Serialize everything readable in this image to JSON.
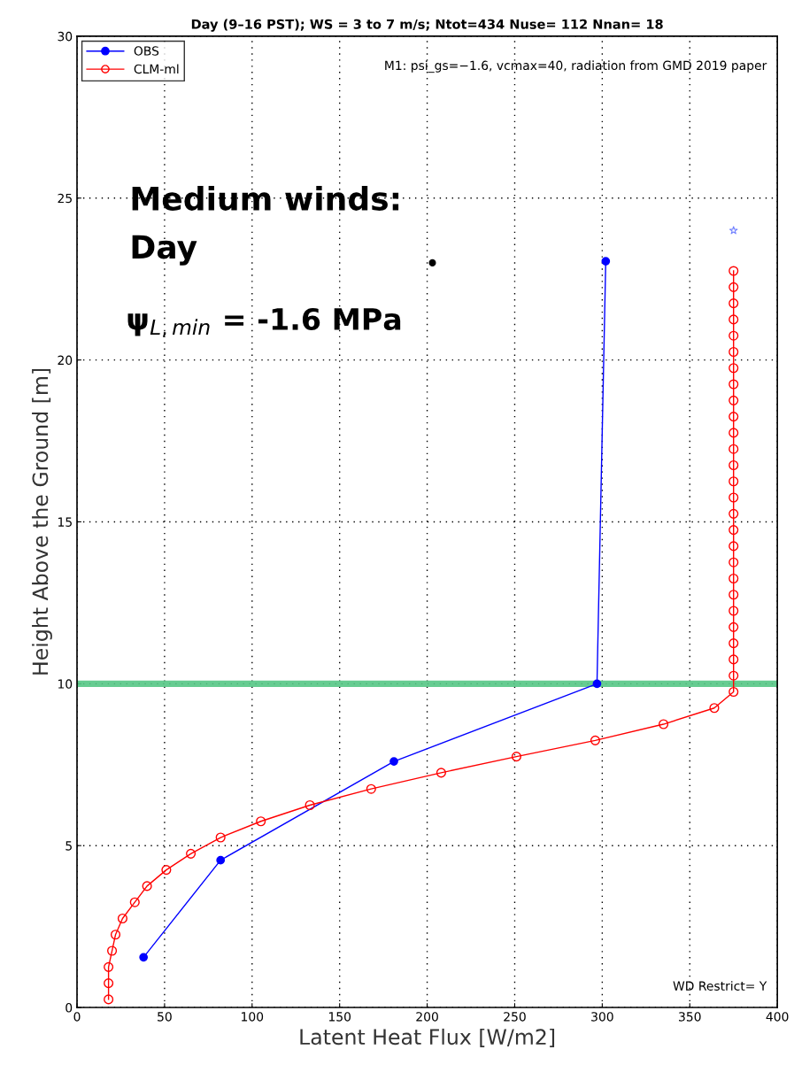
{
  "chart_data": {
    "type": "line",
    "title": "Day (9–16 PST); WS = 3 to 7 m/s; Ntot=434 Nuse= 112 Nnan= 18",
    "xlabel": "Latent Heat Flux [W/m2]",
    "ylabel": "Height Above the Ground [m]",
    "xlim": [
      0,
      400
    ],
    "xticks": [
      0,
      50,
      100,
      150,
      200,
      250,
      300,
      350,
      400
    ],
    "ylim": [
      0,
      30
    ],
    "yticks": [
      0,
      5,
      10,
      15,
      20,
      25,
      30
    ],
    "grid": true,
    "legend": "top left",
    "series": [
      {
        "name": "OBS",
        "color": "#0000ff",
        "marker": "circle",
        "x": [
          38,
          82,
          181,
          297,
          302
        ],
        "values": [
          1.55,
          4.55,
          7.6,
          10.0,
          23.05
        ]
      },
      {
        "name": "CLM-ml",
        "color": "#ff0000",
        "marker": "circle",
        "x": [
          18,
          18,
          18,
          20,
          22,
          26,
          33,
          40,
          51,
          65,
          82,
          105,
          133,
          168,
          208,
          251,
          296,
          335,
          364,
          375,
          375,
          375,
          375,
          375,
          375,
          375,
          375,
          375,
          375,
          375,
          375,
          375,
          375,
          375,
          375,
          375,
          375,
          375,
          375,
          375,
          375,
          375,
          375,
          375,
          375,
          375
        ],
        "values": [
          0.25,
          0.75,
          1.25,
          1.75,
          2.25,
          2.75,
          3.25,
          3.75,
          4.25,
          4.75,
          5.25,
          5.75,
          6.25,
          6.75,
          7.25,
          7.75,
          8.25,
          8.75,
          9.25,
          9.75,
          10.25,
          10.75,
          11.25,
          11.75,
          12.25,
          12.75,
          13.25,
          13.75,
          14.25,
          14.75,
          15.25,
          15.75,
          16.25,
          16.75,
          17.25,
          17.75,
          18.25,
          18.75,
          19.25,
          19.75,
          20.25,
          20.75,
          21.25,
          21.75,
          22.25,
          22.75
        ]
      },
      {
        "type": "scatter",
        "color": "#000000",
        "marker": "circle",
        "x": [
          203
        ],
        "values": [
          23.0
        ]
      },
      {
        "type": "scatter",
        "color": "#6f7fff",
        "marker": "star",
        "x": [
          375
        ],
        "values": [
          24.0
        ]
      }
    ],
    "bands": [
      {
        "axis": "y",
        "from": 9.9,
        "to": 10.1,
        "color": "#55c785"
      }
    ],
    "annotations": [
      "M1: psi_gs=−1.6, vcmax=40, radiation from GMD 2019 paper",
      "WD Restrict= Y",
      "Medium winds:",
      "Day",
      "ψ$_{L,min}$ = -1.6 MPa"
    ]
  }
}
